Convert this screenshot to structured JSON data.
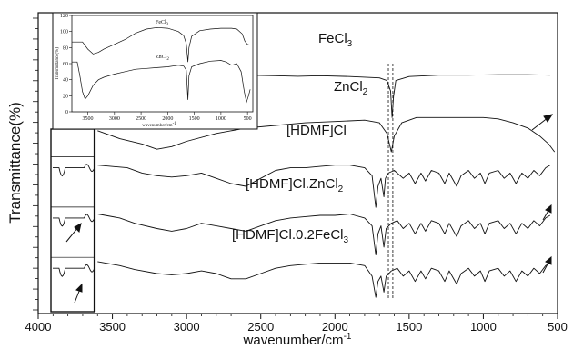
{
  "chart_data": {
    "type": "line",
    "title": "",
    "xlabel": "wavenumber/cm",
    "xlabel_sup": "-1",
    "ylabel": "Transmittance(%)",
    "x_reversed": true,
    "xlim": [
      4000,
      500
    ],
    "x_ticks": [
      4000,
      3500,
      3000,
      2500,
      2000,
      1500,
      1000,
      500
    ],
    "y_ticks_labeled": false,
    "grid": false,
    "legend": "none",
    "series": [
      {
        "name": "FeCl",
        "name_sub": "3",
        "points": [
          [
            3950,
            0.8
          ],
          [
            3800,
            0.82
          ],
          [
            3600,
            0.83
          ],
          [
            3400,
            0.835
          ],
          [
            3200,
            0.845
          ],
          [
            3000,
            0.85
          ],
          [
            2800,
            0.86
          ],
          [
            2600,
            0.86
          ],
          [
            2400,
            0.858
          ],
          [
            2250,
            0.856
          ],
          [
            2100,
            0.858
          ],
          [
            1900,
            0.855
          ],
          [
            1700,
            0.85
          ],
          [
            1650,
            0.84
          ],
          [
            1625,
            0.8
          ],
          [
            1615,
            0.7
          ],
          [
            1605,
            0.78
          ],
          [
            1590,
            0.84
          ],
          [
            1500,
            0.855
          ],
          [
            1300,
            0.86
          ],
          [
            1100,
            0.86
          ],
          [
            900,
            0.862
          ],
          [
            700,
            0.862
          ],
          [
            550,
            0.86
          ]
        ]
      },
      {
        "name": "ZnCl",
        "name_sub": "2",
        "points": [
          [
            3950,
            0.66
          ],
          [
            3800,
            0.66
          ],
          [
            3600,
            0.65
          ],
          [
            3450,
            0.62
          ],
          [
            3300,
            0.6
          ],
          [
            3200,
            0.58
          ],
          [
            3100,
            0.59
          ],
          [
            3000,
            0.61
          ],
          [
            2800,
            0.64
          ],
          [
            2600,
            0.66
          ],
          [
            2400,
            0.67
          ],
          [
            2200,
            0.68
          ],
          [
            2000,
            0.685
          ],
          [
            1800,
            0.69
          ],
          [
            1700,
            0.68
          ],
          [
            1650,
            0.64
          ],
          [
            1620,
            0.57
          ],
          [
            1600,
            0.63
          ],
          [
            1550,
            0.68
          ],
          [
            1450,
            0.7
          ],
          [
            1300,
            0.7
          ],
          [
            1100,
            0.7
          ],
          [
            1000,
            0.7
          ],
          [
            900,
            0.695
          ],
          [
            800,
            0.68
          ],
          [
            700,
            0.66
          ],
          [
            620,
            0.63
          ],
          [
            560,
            0.6
          ],
          [
            520,
            0.57
          ]
        ]
      },
      {
        "name": "[HDMF]Cl",
        "name_sub": "",
        "points": [
          [
            3950,
            0.53
          ],
          [
            3800,
            0.52
          ],
          [
            3600,
            0.52
          ],
          [
            3400,
            0.51
          ],
          [
            3300,
            0.49
          ],
          [
            3200,
            0.48
          ],
          [
            3100,
            0.475
          ],
          [
            3000,
            0.48
          ],
          [
            2900,
            0.49
          ],
          [
            2800,
            0.47
          ],
          [
            2700,
            0.45
          ],
          [
            2600,
            0.44
          ],
          [
            2500,
            0.47
          ],
          [
            2400,
            0.5
          ],
          [
            2300,
            0.51
          ],
          [
            2200,
            0.51
          ],
          [
            2100,
            0.515
          ],
          [
            2000,
            0.52
          ],
          [
            1900,
            0.52
          ],
          [
            1800,
            0.51
          ],
          [
            1750,
            0.48
          ],
          [
            1725,
            0.36
          ],
          [
            1710,
            0.44
          ],
          [
            1690,
            0.47
          ],
          [
            1670,
            0.4
          ],
          [
            1660,
            0.47
          ],
          [
            1640,
            0.49
          ],
          [
            1600,
            0.5
          ],
          [
            1540,
            0.47
          ],
          [
            1500,
            0.49
          ],
          [
            1460,
            0.45
          ],
          [
            1420,
            0.49
          ],
          [
            1390,
            0.46
          ],
          [
            1350,
            0.5
          ],
          [
            1300,
            0.49
          ],
          [
            1260,
            0.45
          ],
          [
            1230,
            0.49
          ],
          [
            1180,
            0.44
          ],
          [
            1150,
            0.48
          ],
          [
            1100,
            0.5
          ],
          [
            1060,
            0.47
          ],
          [
            1020,
            0.49
          ],
          [
            990,
            0.45
          ],
          [
            960,
            0.49
          ],
          [
            900,
            0.5
          ],
          [
            860,
            0.47
          ],
          [
            820,
            0.49
          ],
          [
            780,
            0.45
          ],
          [
            740,
            0.49
          ],
          [
            700,
            0.47
          ],
          [
            660,
            0.5
          ],
          [
            620,
            0.48
          ],
          [
            580,
            0.51
          ],
          [
            550,
            0.52
          ]
        ]
      },
      {
        "name": "[HDMF]Cl.ZnCl",
        "name_sub": "2",
        "points": [
          [
            3950,
            0.34
          ],
          [
            3800,
            0.34
          ],
          [
            3600,
            0.335
          ],
          [
            3450,
            0.32
          ],
          [
            3350,
            0.3
          ],
          [
            3200,
            0.28
          ],
          [
            3100,
            0.27
          ],
          [
            3000,
            0.28
          ],
          [
            2900,
            0.3
          ],
          [
            2800,
            0.29
          ],
          [
            2700,
            0.28
          ],
          [
            2600,
            0.27
          ],
          [
            2500,
            0.29
          ],
          [
            2400,
            0.31
          ],
          [
            2300,
            0.32
          ],
          [
            2200,
            0.325
          ],
          [
            2100,
            0.33
          ],
          [
            2000,
            0.33
          ],
          [
            1900,
            0.335
          ],
          [
            1800,
            0.32
          ],
          [
            1750,
            0.29
          ],
          [
            1725,
            0.18
          ],
          [
            1710,
            0.26
          ],
          [
            1690,
            0.29
          ],
          [
            1670,
            0.21
          ],
          [
            1655,
            0.28
          ],
          [
            1620,
            0.3
          ],
          [
            1580,
            0.31
          ],
          [
            1540,
            0.28
          ],
          [
            1500,
            0.3
          ],
          [
            1460,
            0.26
          ],
          [
            1420,
            0.3
          ],
          [
            1390,
            0.27
          ],
          [
            1350,
            0.31
          ],
          [
            1300,
            0.3
          ],
          [
            1260,
            0.26
          ],
          [
            1230,
            0.3
          ],
          [
            1180,
            0.25
          ],
          [
            1150,
            0.29
          ],
          [
            1100,
            0.31
          ],
          [
            1060,
            0.28
          ],
          [
            1020,
            0.3
          ],
          [
            990,
            0.26
          ],
          [
            960,
            0.3
          ],
          [
            900,
            0.31
          ],
          [
            860,
            0.28
          ],
          [
            820,
            0.3
          ],
          [
            780,
            0.26
          ],
          [
            740,
            0.3
          ],
          [
            700,
            0.28
          ],
          [
            660,
            0.31
          ],
          [
            620,
            0.29
          ],
          [
            580,
            0.32
          ],
          [
            550,
            0.33
          ]
        ]
      },
      {
        "name": "[HDMF]Cl.0.2FeCl",
        "name_sub": "3",
        "points": [
          [
            3950,
            0.16
          ],
          [
            3800,
            0.16
          ],
          [
            3600,
            0.155
          ],
          [
            3450,
            0.14
          ],
          [
            3350,
            0.125
          ],
          [
            3200,
            0.11
          ],
          [
            3100,
            0.105
          ],
          [
            3000,
            0.11
          ],
          [
            2900,
            0.12
          ],
          [
            2800,
            0.11
          ],
          [
            2750,
            0.1
          ],
          [
            2700,
            0.09
          ],
          [
            2600,
            0.09
          ],
          [
            2500,
            0.11
          ],
          [
            2400,
            0.13
          ],
          [
            2300,
            0.14
          ],
          [
            2200,
            0.145
          ],
          [
            2100,
            0.15
          ],
          [
            2000,
            0.15
          ],
          [
            1900,
            0.15
          ],
          [
            1800,
            0.14
          ],
          [
            1750,
            0.1
          ],
          [
            1725,
            0.02
          ],
          [
            1710,
            0.08
          ],
          [
            1690,
            0.1
          ],
          [
            1670,
            0.04
          ],
          [
            1655,
            0.1
          ],
          [
            1620,
            0.12
          ],
          [
            1580,
            0.13
          ],
          [
            1540,
            0.1
          ],
          [
            1500,
            0.12
          ],
          [
            1460,
            0.08
          ],
          [
            1420,
            0.12
          ],
          [
            1390,
            0.09
          ],
          [
            1350,
            0.13
          ],
          [
            1300,
            0.12
          ],
          [
            1260,
            0.08
          ],
          [
            1230,
            0.12
          ],
          [
            1180,
            0.07
          ],
          [
            1150,
            0.11
          ],
          [
            1100,
            0.13
          ],
          [
            1060,
            0.1
          ],
          [
            1020,
            0.12
          ],
          [
            990,
            0.08
          ],
          [
            960,
            0.12
          ],
          [
            900,
            0.13
          ],
          [
            860,
            0.1
          ],
          [
            820,
            0.12
          ],
          [
            780,
            0.08
          ],
          [
            740,
            0.12
          ],
          [
            700,
            0.1
          ],
          [
            660,
            0.13
          ],
          [
            620,
            0.11
          ],
          [
            580,
            0.14
          ],
          [
            550,
            0.15
          ]
        ]
      }
    ],
    "inset": {
      "xlabel": "wavenumber/cm",
      "xlabel_sup": "-1",
      "ylabel": "Transmittance(%)",
      "xlim": [
        3800,
        400
      ],
      "ylim": [
        0,
        120
      ],
      "x_ticks": [
        3500,
        3000,
        2500,
        2000,
        1500,
        1000,
        500
      ],
      "y_ticks": [
        0,
        20,
        40,
        60,
        80,
        100,
        120
      ],
      "series": [
        {
          "name": "FeCl",
          "name_sub": "3",
          "points": [
            [
              3800,
              87
            ],
            [
              3600,
              87
            ],
            [
              3500,
              78
            ],
            [
              3400,
              72
            ],
            [
              3300,
              74
            ],
            [
              3200,
              78
            ],
            [
              3000,
              84
            ],
            [
              2800,
              90
            ],
            [
              2600,
              98
            ],
            [
              2400,
              103
            ],
            [
              2200,
              105
            ],
            [
              2000,
              104
            ],
            [
              1800,
              100
            ],
            [
              1700,
              95
            ],
            [
              1650,
              85
            ],
            [
              1620,
              62
            ],
            [
              1600,
              80
            ],
            [
              1550,
              94
            ],
            [
              1400,
              101
            ],
            [
              1200,
              103
            ],
            [
              1000,
              104
            ],
            [
              800,
              104
            ],
            [
              700,
              103
            ],
            [
              600,
              97
            ],
            [
              550,
              88
            ],
            [
              500,
              84
            ],
            [
              450,
              83
            ]
          ]
        },
        {
          "name": "ZnCl",
          "name_sub": "2",
          "points": [
            [
              3800,
              62
            ],
            [
              3700,
              62
            ],
            [
              3650,
              45
            ],
            [
              3600,
              25
            ],
            [
              3550,
              16
            ],
            [
              3500,
              20
            ],
            [
              3400,
              33
            ],
            [
              3300,
              40
            ],
            [
              3200,
              43
            ],
            [
              3000,
              47
            ],
            [
              2800,
              50
            ],
            [
              2600,
              53
            ],
            [
              2400,
              54
            ],
            [
              2200,
              55
            ],
            [
              2000,
              56
            ],
            [
              1800,
              58
            ],
            [
              1700,
              57
            ],
            [
              1650,
              52
            ],
            [
              1620,
              15
            ],
            [
              1600,
              45
            ],
            [
              1550,
              56
            ],
            [
              1400,
              60
            ],
            [
              1200,
              63
            ],
            [
              1000,
              64
            ],
            [
              900,
              62
            ],
            [
              800,
              58
            ],
            [
              700,
              60
            ],
            [
              620,
              50
            ],
            [
              560,
              25
            ],
            [
              520,
              12
            ],
            [
              480,
              20
            ],
            [
              450,
              28
            ]
          ]
        }
      ]
    }
  }
}
